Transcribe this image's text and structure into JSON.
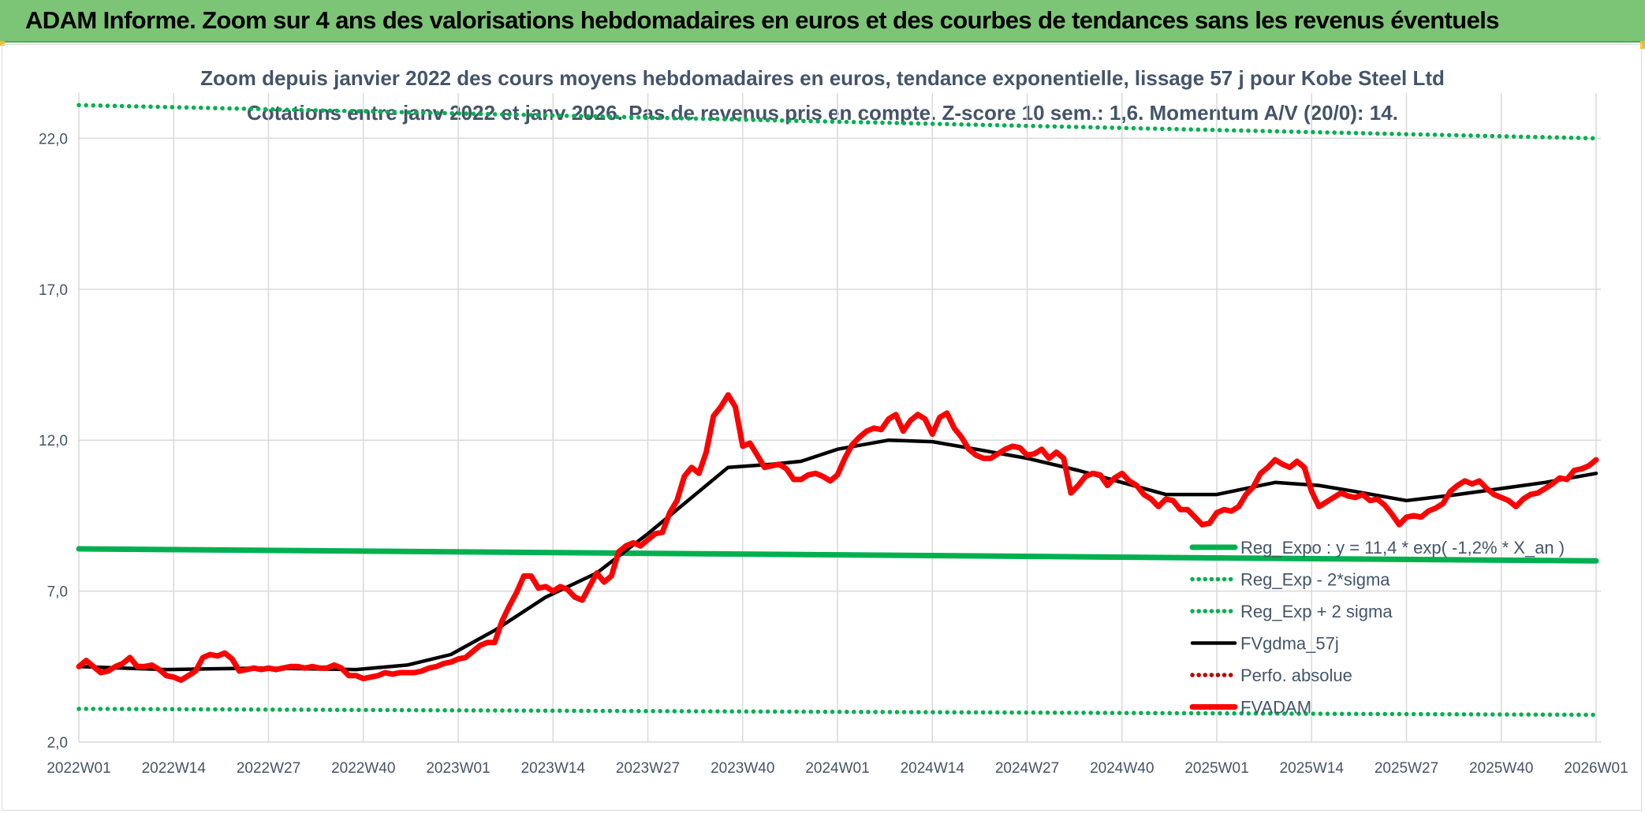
{
  "header": {
    "banner_title": "ADAM Informe. Zoom sur 4 ans des valorisations hebdomadaires en euros et des courbes de tendances sans les revenus éventuels"
  },
  "colors": {
    "banner_bg": "#7cc576",
    "reg_expo": "#00b050",
    "fvgdma": "#000000",
    "perfo": "#c00000",
    "fvadam": "#ff0000",
    "grid": "#d9d9d9",
    "text": "#44546a"
  },
  "chart_data": {
    "type": "line",
    "title": "Zoom depuis janvier 2022 des cours moyens hebdomadaires en euros, tendance exponentielle, lissage 57 j pour Kobe Steel Ltd",
    "subtitle": "Cotations entre janv 2022 et janv 2026. Pas de revenus pris en compte. Z-score 10 sem.: 1,6. Momentum A/V (20/0): 14.",
    "xlabel": "",
    "ylabel": "",
    "ylim": [
      2.0,
      23.5
    ],
    "yticks": [
      "2,0",
      "7,0",
      "12,0",
      "17,0",
      "22,0"
    ],
    "x_week_index_range": [
      1,
      209
    ],
    "xticks": [
      {
        "label": "2022W01",
        "week": 1
      },
      {
        "label": "2022W14",
        "week": 14
      },
      {
        "label": "2022W27",
        "week": 27
      },
      {
        "label": "2022W40",
        "week": 40
      },
      {
        "label": "2023W01",
        "week": 53
      },
      {
        "label": "2023W14",
        "week": 66
      },
      {
        "label": "2023W27",
        "week": 79
      },
      {
        "label": "2023W40",
        "week": 92
      },
      {
        "label": "2024W01",
        "week": 105
      },
      {
        "label": "2024W14",
        "week": 118
      },
      {
        "label": "2024W27",
        "week": 131
      },
      {
        "label": "2024W40",
        "week": 144
      },
      {
        "label": "2025W01",
        "week": 157
      },
      {
        "label": "2025W14",
        "week": 170
      },
      {
        "label": "2025W27",
        "week": 183
      },
      {
        "label": "2025W40",
        "week": 196
      },
      {
        "label": "2026W01",
        "week": 209
      }
    ],
    "grid": true,
    "legend_position": "bottom-right",
    "series": [
      {
        "name": "Reg_Expo : y = 11,4 * exp( -1,2% *  X_an )",
        "style": "solid-thick",
        "color": "#00b050",
        "points": [
          [
            1,
            8.4
          ],
          [
            209,
            8.0
          ]
        ]
      },
      {
        "name": "Reg_Exp - 2*sigma",
        "style": "dotted",
        "color": "#00b050",
        "points": [
          [
            1,
            3.1
          ],
          [
            209,
            2.9
          ]
        ]
      },
      {
        "name": "Reg_Exp + 2 sigma",
        "style": "dotted",
        "color": "#00b050",
        "points": [
          [
            1,
            23.1
          ],
          [
            209,
            22.0
          ]
        ]
      },
      {
        "name": "FVgdma_57j",
        "style": "solid",
        "color": "#000000",
        "points": [
          [
            1,
            4.5
          ],
          [
            13,
            4.4
          ],
          [
            26,
            4.45
          ],
          [
            39,
            4.4
          ],
          [
            46,
            4.55
          ],
          [
            52,
            4.9
          ],
          [
            58,
            5.7
          ],
          [
            65,
            6.8
          ],
          [
            72,
            7.6
          ],
          [
            79,
            8.9
          ],
          [
            86,
            10.3
          ],
          [
            90,
            11.1
          ],
          [
            96,
            11.2
          ],
          [
            100,
            11.3
          ],
          [
            105,
            11.7
          ],
          [
            112,
            12.0
          ],
          [
            118,
            11.95
          ],
          [
            124,
            11.7
          ],
          [
            131,
            11.4
          ],
          [
            138,
            11.0
          ],
          [
            144,
            10.6
          ],
          [
            150,
            10.2
          ],
          [
            157,
            10.2
          ],
          [
            165,
            10.6
          ],
          [
            171,
            10.5
          ],
          [
            176,
            10.3
          ],
          [
            183,
            10.0
          ],
          [
            190,
            10.2
          ],
          [
            196,
            10.4
          ],
          [
            202,
            10.6
          ],
          [
            209,
            10.9
          ]
        ]
      },
      {
        "name": "Perfo. absolue",
        "style": "dotted",
        "color": "#c00000",
        "points": []
      },
      {
        "name": "FVADAM",
        "style": "solid-thick",
        "color": "#ff0000",
        "points": [
          [
            1,
            4.5
          ],
          [
            2,
            4.7
          ],
          [
            3,
            4.5
          ],
          [
            4,
            4.3
          ],
          [
            5,
            4.35
          ],
          [
            6,
            4.5
          ],
          [
            7,
            4.6
          ],
          [
            8,
            4.8
          ],
          [
            9,
            4.5
          ],
          [
            10,
            4.5
          ],
          [
            11,
            4.55
          ],
          [
            12,
            4.4
          ],
          [
            13,
            4.2
          ],
          [
            14,
            4.15
          ],
          [
            15,
            4.05
          ],
          [
            16,
            4.2
          ],
          [
            17,
            4.35
          ],
          [
            18,
            4.8
          ],
          [
            19,
            4.9
          ],
          [
            20,
            4.85
          ],
          [
            21,
            4.95
          ],
          [
            22,
            4.75
          ],
          [
            23,
            4.35
          ],
          [
            24,
            4.4
          ],
          [
            25,
            4.45
          ],
          [
            26,
            4.4
          ],
          [
            27,
            4.45
          ],
          [
            28,
            4.4
          ],
          [
            29,
            4.45
          ],
          [
            30,
            4.5
          ],
          [
            31,
            4.5
          ],
          [
            32,
            4.45
          ],
          [
            33,
            4.5
          ],
          [
            34,
            4.45
          ],
          [
            35,
            4.45
          ],
          [
            36,
            4.55
          ],
          [
            37,
            4.45
          ],
          [
            38,
            4.2
          ],
          [
            39,
            4.2
          ],
          [
            40,
            4.1
          ],
          [
            41,
            4.15
          ],
          [
            42,
            4.2
          ],
          [
            43,
            4.3
          ],
          [
            44,
            4.25
          ],
          [
            45,
            4.3
          ],
          [
            46,
            4.3
          ],
          [
            47,
            4.3
          ],
          [
            48,
            4.35
          ],
          [
            49,
            4.45
          ],
          [
            50,
            4.5
          ],
          [
            51,
            4.6
          ],
          [
            52,
            4.65
          ],
          [
            53,
            4.75
          ],
          [
            54,
            4.8
          ],
          [
            55,
            5.0
          ],
          [
            56,
            5.2
          ],
          [
            57,
            5.3
          ],
          [
            58,
            5.3
          ],
          [
            59,
            6.0
          ],
          [
            60,
            6.5
          ],
          [
            61,
            6.95
          ],
          [
            62,
            7.5
          ],
          [
            63,
            7.5
          ],
          [
            64,
            7.1
          ],
          [
            65,
            7.15
          ],
          [
            66,
            7.0
          ],
          [
            67,
            7.15
          ],
          [
            68,
            7.05
          ],
          [
            69,
            6.8
          ],
          [
            70,
            6.7
          ],
          [
            71,
            7.15
          ],
          [
            72,
            7.6
          ],
          [
            73,
            7.3
          ],
          [
            74,
            7.5
          ],
          [
            75,
            8.3
          ],
          [
            76,
            8.5
          ],
          [
            77,
            8.6
          ],
          [
            78,
            8.5
          ],
          [
            79,
            8.7
          ],
          [
            80,
            8.9
          ],
          [
            81,
            8.95
          ],
          [
            82,
            9.6
          ],
          [
            83,
            10.0
          ],
          [
            84,
            10.8
          ],
          [
            85,
            11.1
          ],
          [
            86,
            10.9
          ],
          [
            87,
            11.6
          ],
          [
            88,
            12.8
          ],
          [
            89,
            13.1
          ],
          [
            90,
            13.5
          ],
          [
            91,
            13.1
          ],
          [
            92,
            11.8
          ],
          [
            93,
            11.9
          ],
          [
            94,
            11.5
          ],
          [
            95,
            11.1
          ],
          [
            96,
            11.15
          ],
          [
            97,
            11.2
          ],
          [
            98,
            11.05
          ],
          [
            99,
            10.7
          ],
          [
            100,
            10.7
          ],
          [
            101,
            10.85
          ],
          [
            102,
            10.9
          ],
          [
            103,
            10.8
          ],
          [
            104,
            10.65
          ],
          [
            105,
            10.85
          ],
          [
            106,
            11.4
          ],
          [
            107,
            11.85
          ],
          [
            108,
            12.1
          ],
          [
            109,
            12.3
          ],
          [
            110,
            12.4
          ],
          [
            111,
            12.35
          ],
          [
            112,
            12.7
          ],
          [
            113,
            12.85
          ],
          [
            114,
            12.3
          ],
          [
            115,
            12.65
          ],
          [
            116,
            12.85
          ],
          [
            117,
            12.7
          ],
          [
            118,
            12.2
          ],
          [
            119,
            12.75
          ],
          [
            120,
            12.9
          ],
          [
            121,
            12.4
          ],
          [
            122,
            12.1
          ],
          [
            123,
            11.7
          ],
          [
            124,
            11.5
          ],
          [
            125,
            11.4
          ],
          [
            126,
            11.4
          ],
          [
            127,
            11.55
          ],
          [
            128,
            11.7
          ],
          [
            129,
            11.8
          ],
          [
            130,
            11.75
          ],
          [
            131,
            11.5
          ],
          [
            132,
            11.55
          ],
          [
            133,
            11.7
          ],
          [
            134,
            11.4
          ],
          [
            135,
            11.6
          ],
          [
            136,
            11.4
          ],
          [
            137,
            10.25
          ],
          [
            138,
            10.5
          ],
          [
            139,
            10.8
          ],
          [
            140,
            10.9
          ],
          [
            141,
            10.85
          ],
          [
            142,
            10.5
          ],
          [
            143,
            10.75
          ],
          [
            144,
            10.9
          ],
          [
            145,
            10.65
          ],
          [
            146,
            10.5
          ],
          [
            147,
            10.2
          ],
          [
            148,
            10.05
          ],
          [
            149,
            9.8
          ],
          [
            150,
            10.05
          ],
          [
            151,
            10.0
          ],
          [
            152,
            9.7
          ],
          [
            153,
            9.7
          ],
          [
            154,
            9.45
          ],
          [
            155,
            9.2
          ],
          [
            156,
            9.25
          ],
          [
            157,
            9.6
          ],
          [
            158,
            9.7
          ],
          [
            159,
            9.65
          ],
          [
            160,
            9.8
          ],
          [
            161,
            10.2
          ],
          [
            162,
            10.45
          ],
          [
            163,
            10.9
          ],
          [
            164,
            11.1
          ],
          [
            165,
            11.35
          ],
          [
            166,
            11.2
          ],
          [
            167,
            11.1
          ],
          [
            168,
            11.3
          ],
          [
            169,
            11.1
          ],
          [
            170,
            10.3
          ],
          [
            171,
            9.8
          ],
          [
            172,
            9.95
          ],
          [
            173,
            10.1
          ],
          [
            174,
            10.25
          ],
          [
            175,
            10.15
          ],
          [
            176,
            10.1
          ],
          [
            177,
            10.2
          ],
          [
            178,
            10.0
          ],
          [
            179,
            10.05
          ],
          [
            180,
            9.85
          ],
          [
            181,
            9.55
          ],
          [
            182,
            9.2
          ],
          [
            183,
            9.45
          ],
          [
            184,
            9.5
          ],
          [
            185,
            9.45
          ],
          [
            186,
            9.65
          ],
          [
            187,
            9.75
          ],
          [
            188,
            9.9
          ],
          [
            189,
            10.3
          ],
          [
            190,
            10.5
          ],
          [
            191,
            10.65
          ],
          [
            192,
            10.55
          ],
          [
            193,
            10.65
          ],
          [
            194,
            10.4
          ],
          [
            195,
            10.2
          ],
          [
            196,
            10.1
          ],
          [
            197,
            10.0
          ],
          [
            198,
            9.8
          ],
          [
            199,
            10.05
          ],
          [
            200,
            10.2
          ],
          [
            201,
            10.25
          ],
          [
            202,
            10.4
          ],
          [
            203,
            10.55
          ],
          [
            204,
            10.75
          ],
          [
            205,
            10.7
          ],
          [
            206,
            11.0
          ],
          [
            207,
            11.05
          ],
          [
            208,
            11.15
          ],
          [
            209,
            11.35
          ]
        ]
      }
    ]
  }
}
